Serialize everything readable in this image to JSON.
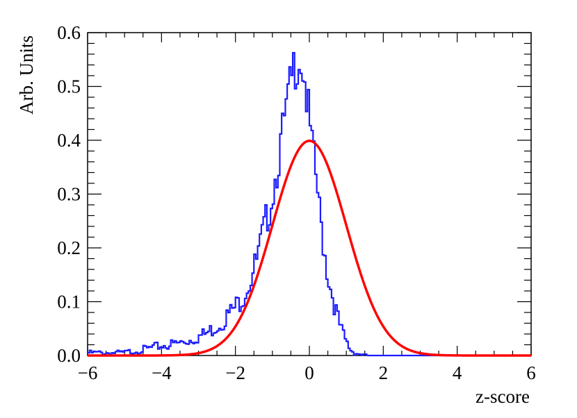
{
  "chart_data": {
    "type": "line",
    "title": "",
    "xlabel": "z-score",
    "ylabel": "Arb. Units",
    "xlim": [
      -6,
      6
    ],
    "ylim": [
      0,
      0.6
    ],
    "x_ticks": [
      "−6",
      "−4",
      "−2",
      "0",
      "2",
      "4",
      "6"
    ],
    "y_ticks": [
      "0.0",
      "0.1",
      "0.2",
      "0.3",
      "0.4",
      "0.5",
      "0.6"
    ],
    "grid": false,
    "legend": "none",
    "series": [
      {
        "style": "step",
        "color": "#1a1aff",
        "bin_width": 0.05,
        "x": [
          -5.0,
          -4.8,
          -4.6,
          -4.4,
          -4.2,
          -4.0,
          -3.8,
          -3.6,
          -3.4,
          -3.2,
          -3.0,
          -2.8,
          -2.6,
          -2.4,
          -2.2,
          -2.0,
          -1.8,
          -1.6,
          -1.4,
          -1.2,
          -1.0,
          -0.9,
          -0.8,
          -0.7,
          -0.6,
          -0.5,
          -0.4,
          -0.3,
          -0.2,
          -0.1,
          0.0,
          0.1,
          0.2,
          0.3,
          0.4,
          0.5,
          0.6,
          0.7,
          0.8,
          0.9,
          1.0,
          1.1,
          1.2,
          1.4,
          1.6
        ],
        "y": [
          0.005,
          0.008,
          0.01,
          0.012,
          0.015,
          0.018,
          0.02,
          0.022,
          0.025,
          0.03,
          0.035,
          0.04,
          0.05,
          0.06,
          0.075,
          0.09,
          0.11,
          0.14,
          0.18,
          0.24,
          0.3,
          0.34,
          0.38,
          0.42,
          0.46,
          0.5,
          0.54,
          0.56,
          0.55,
          0.5,
          0.43,
          0.37,
          0.32,
          0.25,
          0.2,
          0.15,
          0.12,
          0.09,
          0.06,
          0.04,
          0.025,
          0.012,
          0.006,
          0.002,
          0.0
        ]
      },
      {
        "style": "smooth",
        "color": "#ff0000",
        "function": "standard normal pdf",
        "mean": 0,
        "sigma": 1
      }
    ]
  }
}
